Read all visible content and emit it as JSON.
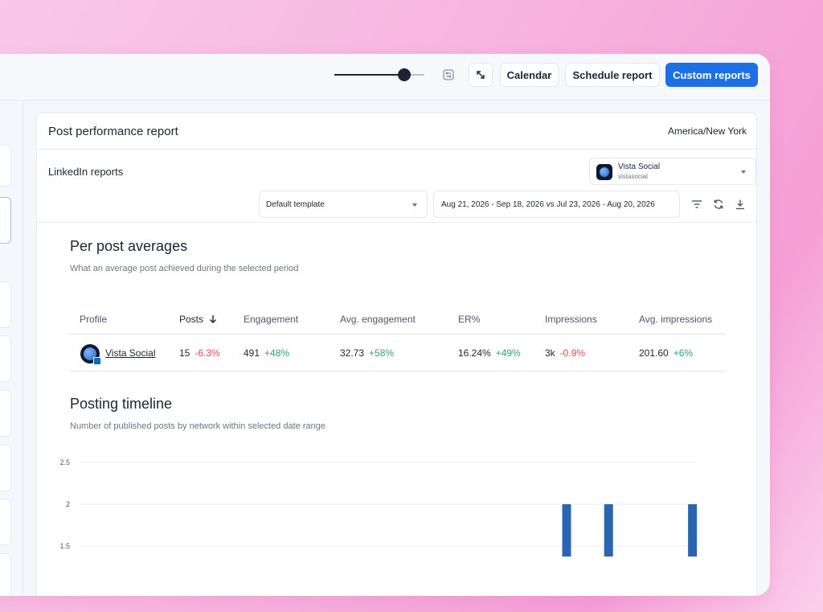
{
  "toolbar": {
    "zoom_level": 0.78,
    "calendar_label": "Calendar",
    "schedule_label": "Schedule report",
    "custom_reports_label": "Custom reports"
  },
  "report": {
    "title": "Post performance report",
    "timezone": "America/New York",
    "network_heading": "LinkedIn reports",
    "profile_select": {
      "name": "Vista Social",
      "handle": "vistasocial"
    },
    "template_select": "Default template",
    "date_range": "Aug 21, 2026 - Sep 18, 2026 vs Jul 23, 2026 - Aug 20, 2026"
  },
  "per_post": {
    "title": "Per post averages",
    "subtitle": "What an average post achieved during the selected period",
    "columns": [
      "Profile",
      "Posts",
      "Engagement",
      "Avg. engagement",
      "ER%",
      "Impressions",
      "Avg. impressions"
    ],
    "row": {
      "profile": "Vista Social",
      "posts": "15",
      "posts_change": "-6.3%",
      "engagement": "491",
      "engagement_change": "+48%",
      "avg_engagement": "32.73",
      "avg_engagement_change": "+58%",
      "er": "16.24%",
      "er_change": "+49%",
      "impressions": "3k",
      "impressions_change": "-0.9%",
      "avg_impressions": "201.60",
      "avg_impressions_change": "+6%"
    }
  },
  "timeline": {
    "title": "Posting timeline",
    "subtitle": "Number of published posts by network within selected date range"
  },
  "colors": {
    "accent": "#1c6fe4",
    "bar": "#2b64b1",
    "negative": "#e5484d",
    "positive": "#30a46c"
  },
  "chart_data": {
    "type": "bar",
    "ylim": [
      0.8,
      2.5
    ],
    "yticks": [
      "2.5",
      "2",
      "1.5",
      "1"
    ],
    "grid": true,
    "xlabel": "",
    "ylabel": "",
    "series": [
      {
        "values": [
          1,
          1,
          1,
          1,
          2,
          1,
          2,
          1,
          1,
          2,
          1,
          1
        ]
      }
    ],
    "bar_slots": [
      5,
      6,
      8,
      12,
      20,
      21,
      22,
      23,
      24,
      26,
      28,
      29
    ]
  }
}
